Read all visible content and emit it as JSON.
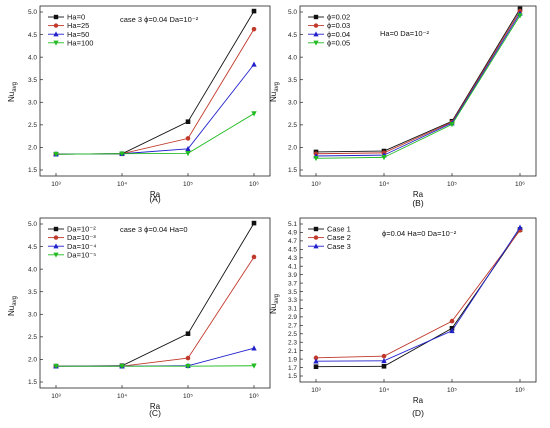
{
  "chart_data": [
    {
      "type": "line",
      "caption": "(A)",
      "x": [
        "10³",
        "10⁴",
        "10⁵",
        "10⁶"
      ],
      "xlabel": "Ra",
      "ylabel": "Nu",
      "ylabel_sub": "avg",
      "ylim": [
        1.5,
        5.0
      ],
      "yticks": [
        "1.5",
        "2.0",
        "2.5",
        "3.0",
        "3.5",
        "4.0",
        "4.5",
        "5.0"
      ],
      "annotation": "case 3  ϕ=0.04  Da=10⁻²",
      "legend_position": "top-left",
      "grid": false,
      "series": [
        {
          "name": "Ha=0",
          "values": [
            1.85,
            1.86,
            2.57,
            5.02
          ],
          "color": "#111111",
          "marker": "square"
        },
        {
          "name": "Ha=25",
          "values": [
            1.85,
            1.86,
            2.2,
            4.62
          ],
          "color": "#c0392b",
          "marker": "circle"
        },
        {
          "name": "Ha=50",
          "values": [
            1.85,
            1.86,
            1.97,
            3.84
          ],
          "color": "#2222cc",
          "marker": "triangle-up"
        },
        {
          "name": "Ha=100",
          "values": [
            1.85,
            1.86,
            1.87,
            2.75
          ],
          "color": "#22bb22",
          "marker": "triangle-down"
        }
      ]
    },
    {
      "type": "line",
      "caption": "(B)",
      "x": [
        "10³",
        "10⁴",
        "10⁵",
        "10⁶"
      ],
      "xlabel": "Ra",
      "ylabel": "Nu",
      "ylabel_sub": "avg",
      "ylim": [
        1.5,
        5.0
      ],
      "yticks": [
        "1.5",
        "2.0",
        "2.5",
        "3.0",
        "3.5",
        "4.0",
        "4.5",
        "5.0"
      ],
      "annotation": "Ha=0  Da=10⁻²",
      "legend_position": "top-left",
      "grid": false,
      "series": [
        {
          "name": "ϕ=0.02",
          "values": [
            1.9,
            1.92,
            2.58,
            5.07
          ],
          "color": "#111111",
          "marker": "square"
        },
        {
          "name": "ϕ=0.03",
          "values": [
            1.86,
            1.88,
            2.56,
            5.02
          ],
          "color": "#c0392b",
          "marker": "circle"
        },
        {
          "name": "ϕ=0.04",
          "values": [
            1.81,
            1.83,
            2.54,
            4.97
          ],
          "color": "#2222cc",
          "marker": "triangle-up"
        },
        {
          "name": "ϕ=0.05",
          "values": [
            1.76,
            1.78,
            2.51,
            4.92
          ],
          "color": "#22bb22",
          "marker": "triangle-down"
        }
      ]
    },
    {
      "type": "line",
      "caption": "(C)",
      "x": [
        "10³",
        "10⁴",
        "10⁵",
        "10⁶"
      ],
      "xlabel": "Ra",
      "ylabel": "Nu",
      "ylabel_sub": "avg",
      "ylim": [
        1.5,
        5.0
      ],
      "yticks": [
        "1.5",
        "2.0",
        "2.5",
        "3.0",
        "3.5",
        "4.0",
        "4.5",
        "5.0"
      ],
      "annotation": "case 3  ϕ=0.04  Ha=0",
      "legend_position": "top-left",
      "grid": false,
      "series": [
        {
          "name": "Da=10⁻²",
          "values": [
            1.85,
            1.86,
            2.57,
            5.02
          ],
          "color": "#111111",
          "marker": "square"
        },
        {
          "name": "Da=10⁻³",
          "values": [
            1.85,
            1.85,
            2.03,
            4.27
          ],
          "color": "#c0392b",
          "marker": "circle"
        },
        {
          "name": "Da=10⁻⁴",
          "values": [
            1.85,
            1.85,
            1.86,
            2.25
          ],
          "color": "#2222cc",
          "marker": "triangle-up"
        },
        {
          "name": "Da=10⁻⁵",
          "values": [
            1.85,
            1.85,
            1.85,
            1.86
          ],
          "color": "#22bb22",
          "marker": "triangle-down"
        }
      ]
    },
    {
      "type": "line",
      "caption": "(D)",
      "x": [
        "10³",
        "10⁴",
        "10⁵",
        "10⁶"
      ],
      "xlabel": "Ra",
      "ylabel": "Nu",
      "ylabel_sub": "avg",
      "ylim": [
        1.5,
        5.0
      ],
      "yticks": [
        "1.5",
        "1.7",
        "1.9",
        "2.1",
        "2.3",
        "2.5",
        "2.7",
        "2.9",
        "3.1",
        "3.3",
        "3.5",
        "3.7",
        "3.9",
        "4.1",
        "4.3",
        "4.5",
        "4.7",
        "4.9",
        "5.1"
      ],
      "yticks_values": [
        1.5,
        1.7,
        1.9,
        2.1,
        2.3,
        2.5,
        2.7,
        2.9,
        3.1,
        3.3,
        3.5,
        3.7,
        3.9,
        4.1,
        4.3,
        4.5,
        4.7,
        4.9,
        5.1
      ],
      "annotation": "ϕ=0.04  Ha=0  Da=10⁻²",
      "legend_position": "top-left",
      "grid": false,
      "series": [
        {
          "name": "Case 1",
          "values": [
            1.72,
            1.73,
            2.63,
            4.97
          ],
          "color": "#111111",
          "marker": "square"
        },
        {
          "name": "Case 2",
          "values": [
            1.93,
            1.97,
            2.8,
            4.95
          ],
          "color": "#c0392b",
          "marker": "circle"
        },
        {
          "name": "Case 3",
          "values": [
            1.85,
            1.86,
            2.57,
            5.02
          ],
          "color": "#2222cc",
          "marker": "triangle-up"
        }
      ]
    }
  ]
}
